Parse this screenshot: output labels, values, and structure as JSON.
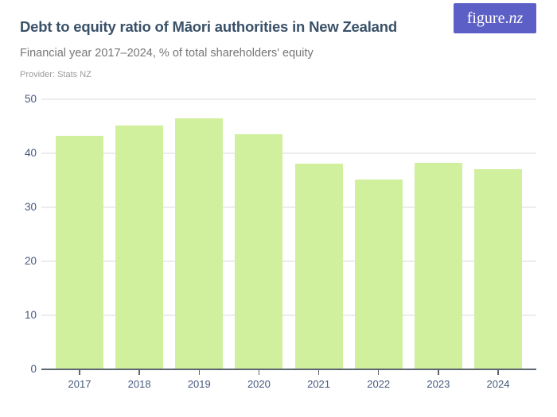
{
  "header": {
    "title": "Debt to equity ratio of Māori authorities in New Zealand",
    "subtitle": "Financial year 2017–2024, % of total shareholders' equity",
    "provider": "Provider: Stats NZ"
  },
  "logo": {
    "main": "figure.",
    "accent": "nz"
  },
  "colors": {
    "title": "#3A5168",
    "subtitle": "#767676",
    "provider": "#9B9B9B",
    "bar": "#D1F09E",
    "gridline": "#ECECEC",
    "axis": "#5E6670",
    "tick_label": "#47597E",
    "logo_bg": "#5C5FC5",
    "logo_text": "#FFFFFF"
  },
  "chart_data": {
    "type": "bar",
    "categories": [
      "2017",
      "2018",
      "2019",
      "2020",
      "2021",
      "2022",
      "2023",
      "2024"
    ],
    "values": [
      43.3,
      45.1,
      46.5,
      43.5,
      38.1,
      35.2,
      38.2,
      37.0
    ],
    "title": "Debt to equity ratio of Māori authorities in New Zealand",
    "subtitle": "Financial year 2017–2024, % of total shareholders' equity",
    "xlabel": "",
    "ylabel": "",
    "ylim": [
      0,
      50
    ],
    "yticks": [
      0,
      10,
      20,
      30,
      40,
      50
    ],
    "grid": true,
    "legend": false,
    "bar_color": "#D1F09E"
  }
}
